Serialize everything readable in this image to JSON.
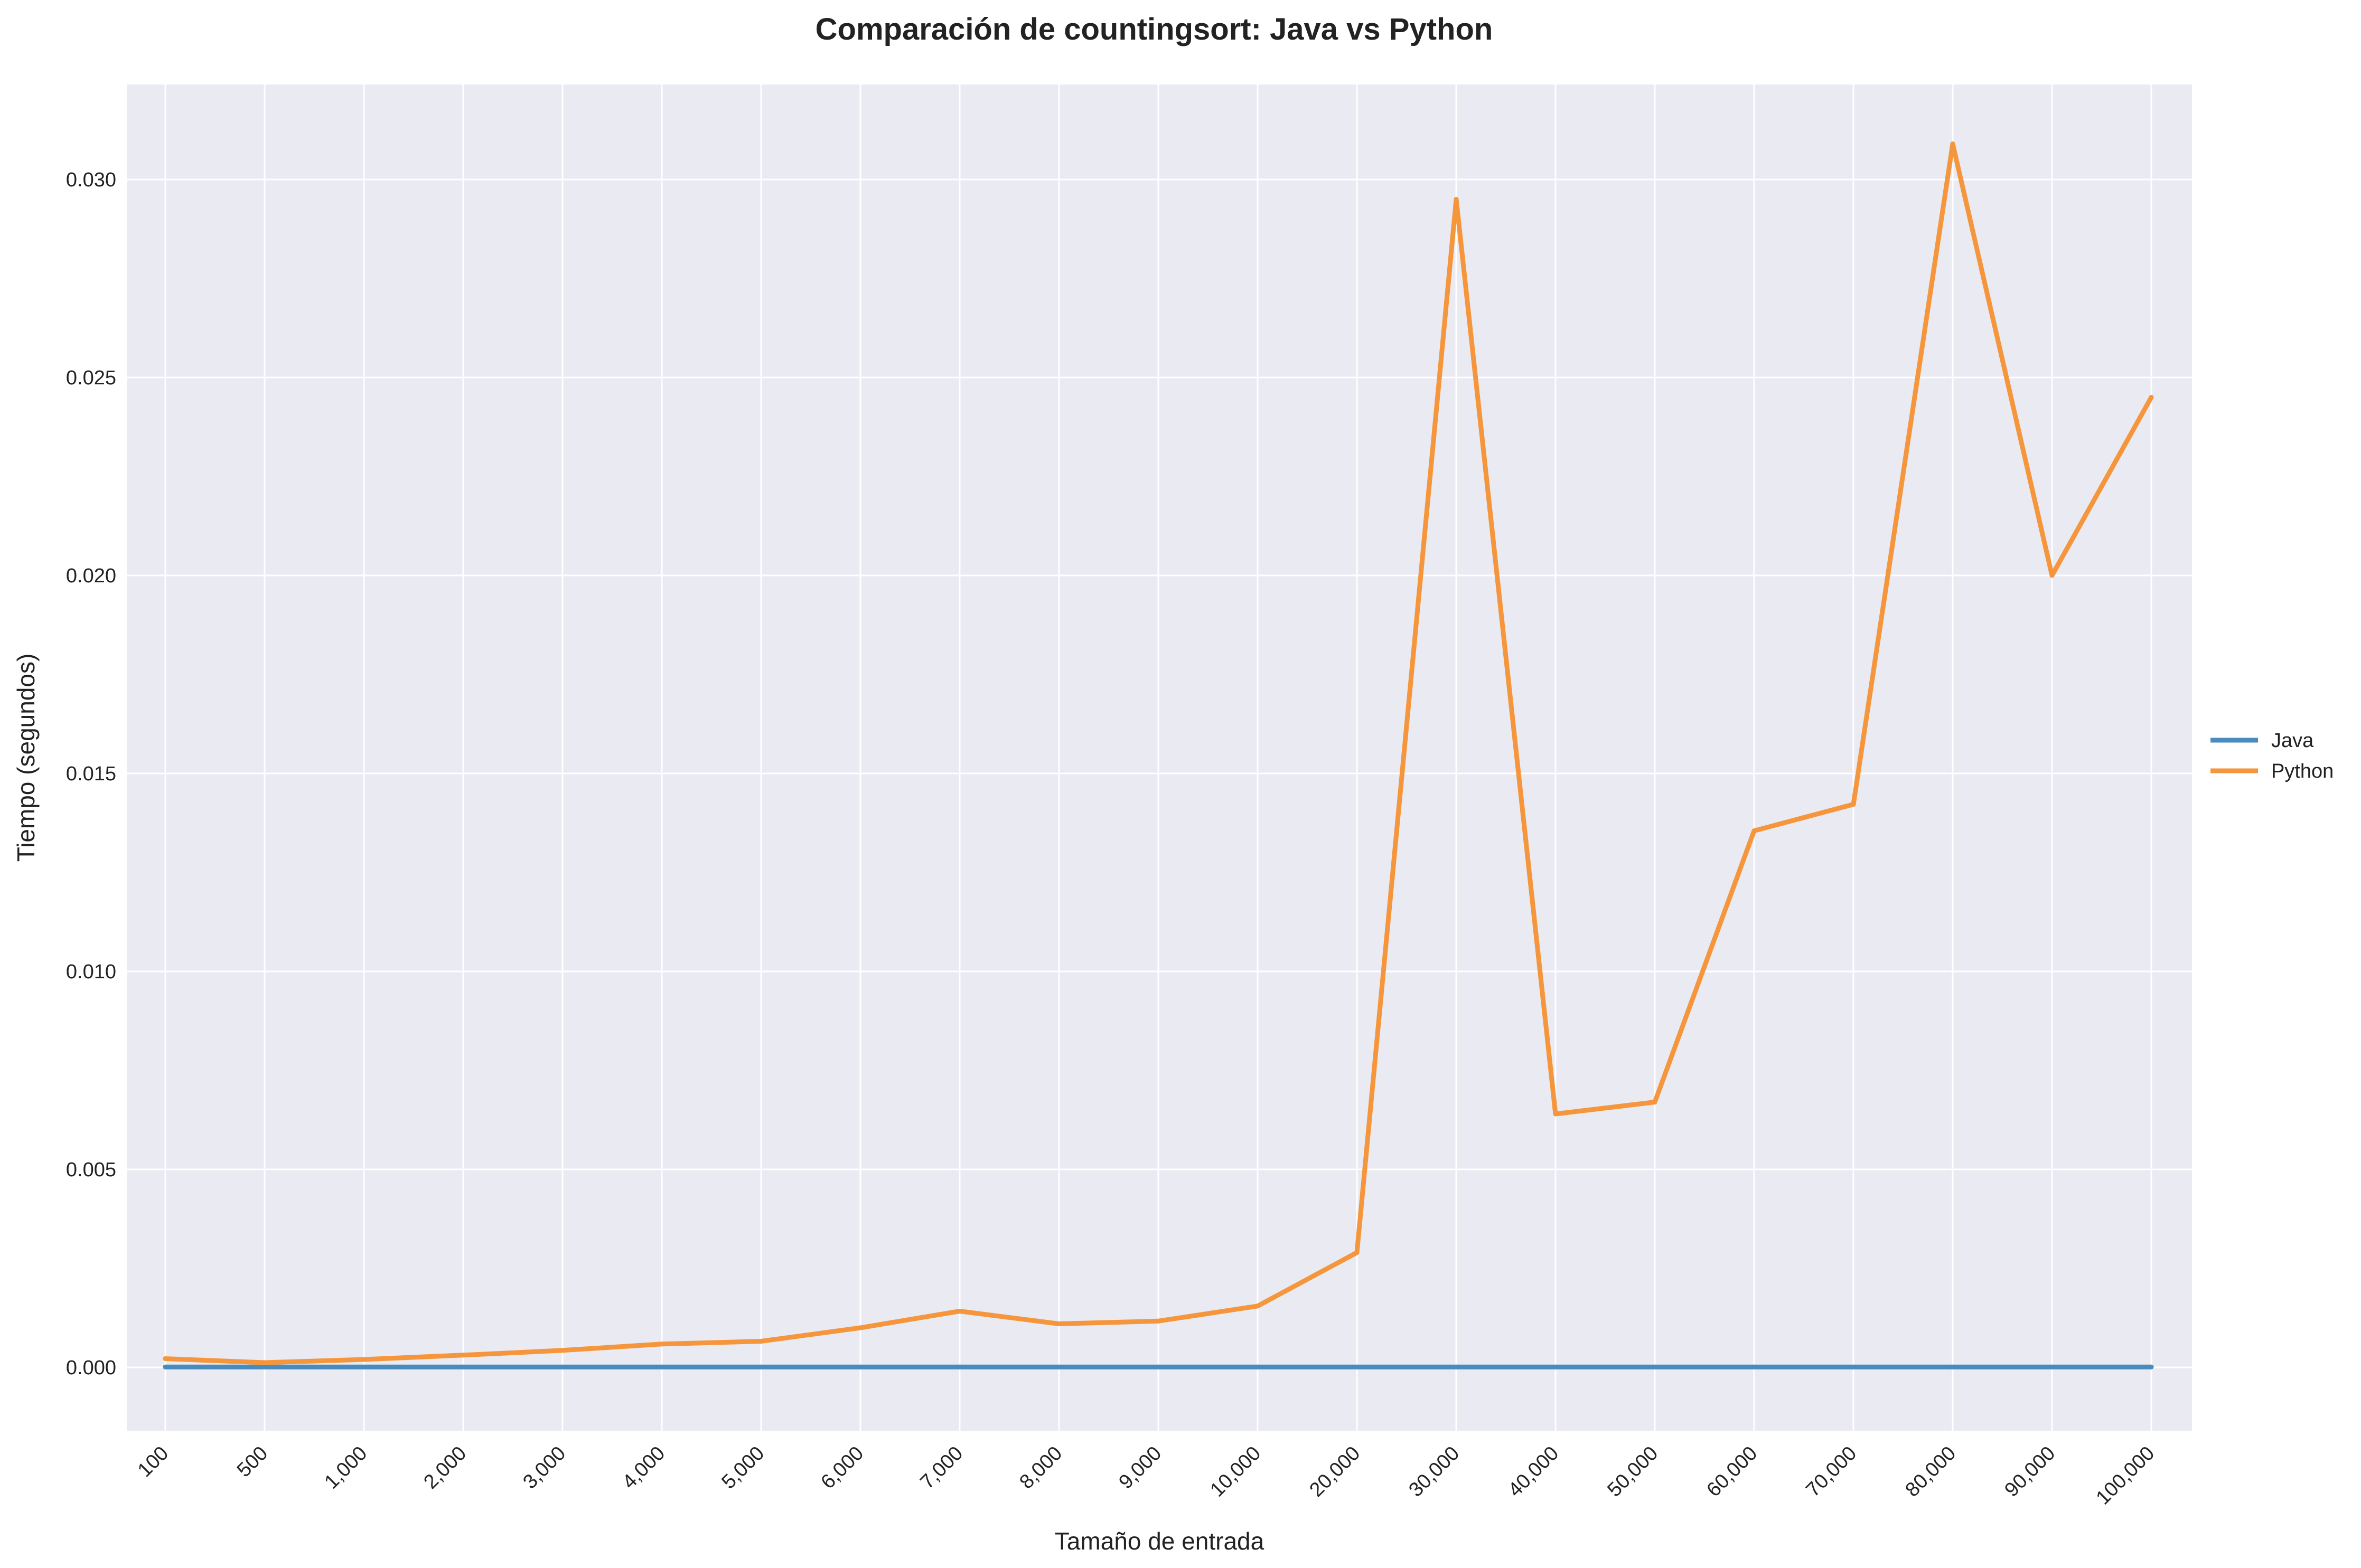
{
  "chart_data": {
    "type": "line",
    "title": "Comparación de countingsort: Java vs Python",
    "xlabel": "Tamaño de entrada",
    "ylabel": "Tiempo (segundos)",
    "categories": [
      "100",
      "500",
      "1,000",
      "2,000",
      "3,000",
      "4,000",
      "5,000",
      "6,000",
      "7,000",
      "8,000",
      "9,000",
      "10,000",
      "20,000",
      "30,000",
      "40,000",
      "50,000",
      "60,000",
      "70,000",
      "80,000",
      "90,000",
      "100,000"
    ],
    "yticks": [
      "0.000",
      "0.005",
      "0.010",
      "0.015",
      "0.020",
      "0.025",
      "0.030"
    ],
    "ylim": [
      -0.0016,
      0.0324
    ],
    "grid": true,
    "legend_position": "right",
    "series": [
      {
        "name": "Java",
        "color": "#4a8bbd",
        "values": [
          1e-05,
          1e-05,
          1e-05,
          1e-05,
          1e-05,
          1e-05,
          1e-05,
          1e-05,
          1e-05,
          1e-05,
          1e-05,
          1e-05,
          1e-05,
          1e-05,
          1e-05,
          1e-05,
          1e-05,
          1e-05,
          1e-05,
          1e-05,
          1e-05
        ]
      },
      {
        "name": "Python",
        "color": "#f5963c",
        "values": [
          0.00022,
          0.00012,
          0.0002,
          0.00031,
          0.00043,
          0.00059,
          0.00066,
          0.001,
          0.00142,
          0.0011,
          0.00117,
          0.00155,
          0.0029,
          0.0295,
          0.0064,
          0.0067,
          0.01355,
          0.01422,
          0.0309,
          0.02,
          0.0245
        ]
      }
    ]
  }
}
